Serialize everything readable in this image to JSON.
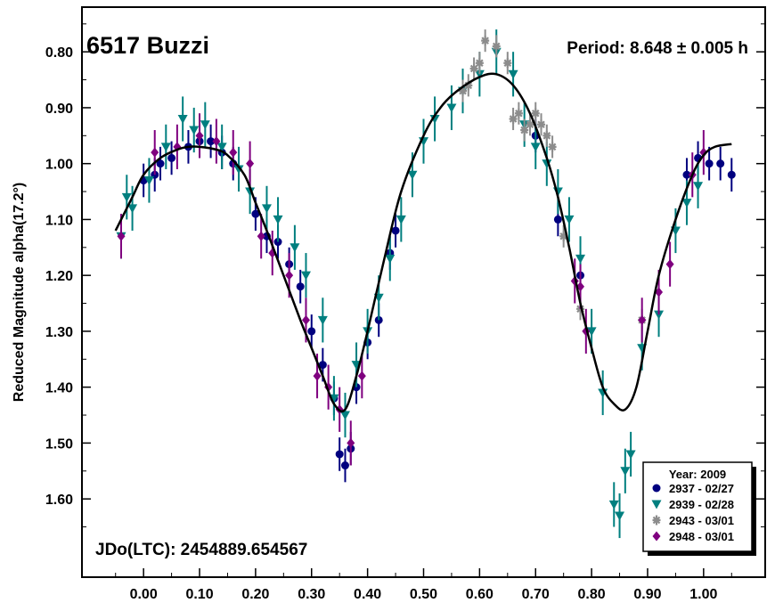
{
  "chart_data": {
    "type": "scatter",
    "title": "6517 Buzzi",
    "period_text": "Period: 8.648 ± 0.005 h",
    "jd_text": "JDo(LTC): 2454889.654567",
    "ylabel": "Reduced Magnitude alpha(17.2°)",
    "xlabel": "",
    "xlim": [
      -0.11,
      1.11
    ],
    "ylim": [
      1.74,
      0.72
    ],
    "y_inverted": true,
    "x_ticks": [
      "0.00",
      "0.10",
      "0.20",
      "0.30",
      "0.40",
      "0.50",
      "0.60",
      "0.70",
      "0.80",
      "0.90",
      "1.00"
    ],
    "y_ticks": [
      "0.80",
      "0.90",
      "1.00",
      "1.10",
      "1.20",
      "1.30",
      "1.40",
      "1.50",
      "1.60"
    ],
    "legend": {
      "title": "Year: 2009",
      "position": "bottom-right",
      "entries": [
        {
          "label": "2937 - 02/27",
          "color": "#00007f",
          "marker": "circle"
        },
        {
          "label": "2939 - 02/28",
          "color": "#007f7f",
          "marker": "triangle-down"
        },
        {
          "label": "2943 - 03/01",
          "color": "#8c8c8c",
          "marker": "asterisk"
        },
        {
          "label": "2948 - 03/01",
          "color": "#7f007f",
          "marker": "diamond"
        }
      ]
    },
    "fit_curve": {
      "color": "#000000",
      "x": [
        -0.05,
        -0.02,
        0.0,
        0.03,
        0.06,
        0.08,
        0.1,
        0.13,
        0.15,
        0.18,
        0.2,
        0.22,
        0.25,
        0.28,
        0.3,
        0.32,
        0.34,
        0.36,
        0.38,
        0.4,
        0.43,
        0.46,
        0.5,
        0.53,
        0.56,
        0.6,
        0.63,
        0.66,
        0.69,
        0.72,
        0.74,
        0.76,
        0.78,
        0.8,
        0.82,
        0.84,
        0.86,
        0.88,
        0.9,
        0.92,
        0.95,
        0.98,
        1.0,
        1.02,
        1.05
      ],
      "y": [
        1.12,
        1.06,
        1.02,
        0.99,
        0.975,
        0.97,
        0.97,
        0.975,
        0.985,
        1.02,
        1.07,
        1.12,
        1.2,
        1.28,
        1.33,
        1.38,
        1.43,
        1.44,
        1.38,
        1.3,
        1.17,
        1.05,
        0.95,
        0.9,
        0.87,
        0.845,
        0.84,
        0.86,
        0.91,
        0.99,
        1.06,
        1.15,
        1.25,
        1.33,
        1.4,
        1.43,
        1.44,
        1.4,
        1.3,
        1.2,
        1.1,
        1.02,
        0.985,
        0.97,
        0.965
      ]
    },
    "series": [
      {
        "name": "2937 - 02/27",
        "color": "#00007f",
        "marker": "circle",
        "x": [
          0.0,
          0.02,
          0.03,
          0.05,
          0.08,
          0.1,
          0.12,
          0.14,
          0.16,
          0.2,
          0.22,
          0.24,
          0.26,
          0.28,
          0.3,
          0.32,
          0.34,
          0.35,
          0.36,
          0.37,
          0.38,
          0.4,
          0.42,
          0.44,
          0.45,
          0.7,
          0.74,
          0.78,
          0.97,
          0.99,
          1.01,
          1.03,
          1.05
        ],
        "y": [
          1.03,
          1.02,
          1.0,
          0.99,
          0.97,
          0.96,
          0.96,
          0.98,
          1.0,
          1.09,
          1.13,
          1.14,
          1.18,
          1.22,
          1.3,
          1.36,
          1.42,
          1.52,
          1.54,
          1.51,
          1.4,
          1.32,
          1.28,
          1.16,
          1.12,
          0.95,
          1.1,
          1.2,
          1.02,
          0.99,
          1.0,
          1.0,
          1.02
        ],
        "err": [
          0.03,
          0.03,
          0.03,
          0.03,
          0.03,
          0.03,
          0.03,
          0.03,
          0.03,
          0.03,
          0.03,
          0.03,
          0.03,
          0.03,
          0.03,
          0.03,
          0.03,
          0.03,
          0.03,
          0.03,
          0.03,
          0.03,
          0.03,
          0.03,
          0.03,
          0.03,
          0.03,
          0.03,
          0.03,
          0.03,
          0.03,
          0.03,
          0.03
        ]
      },
      {
        "name": "2939 - 02/28",
        "color": "#007f7f",
        "marker": "triangle-down",
        "x": [
          -0.04,
          -0.03,
          -0.02,
          0.01,
          0.04,
          0.07,
          0.09,
          0.11,
          0.14,
          0.17,
          0.19,
          0.22,
          0.24,
          0.27,
          0.29,
          0.32,
          0.34,
          0.36,
          0.38,
          0.4,
          0.42,
          0.44,
          0.46,
          0.48,
          0.5,
          0.52,
          0.55,
          0.57,
          0.6,
          0.63,
          0.66,
          0.68,
          0.7,
          0.72,
          0.74,
          0.76,
          0.78,
          0.8,
          0.82,
          0.84,
          0.85,
          0.86,
          0.87,
          0.89,
          0.92,
          0.95,
          0.97,
          0.99
        ],
        "y": [
          1.13,
          1.06,
          1.08,
          1.03,
          0.97,
          0.92,
          0.94,
          0.93,
          0.97,
          1.01,
          1.05,
          1.08,
          1.1,
          1.15,
          1.2,
          1.28,
          1.42,
          1.45,
          1.36,
          1.3,
          1.24,
          1.17,
          1.1,
          1.02,
          0.96,
          0.92,
          0.9,
          0.87,
          0.84,
          0.8,
          0.84,
          0.93,
          0.97,
          1.0,
          1.05,
          1.1,
          1.17,
          1.3,
          1.41,
          1.61,
          1.63,
          1.55,
          1.52,
          1.33,
          1.27,
          1.12,
          1.07,
          1.04
        ],
        "err": [
          0.04,
          0.04,
          0.04,
          0.04,
          0.04,
          0.04,
          0.04,
          0.04,
          0.04,
          0.04,
          0.04,
          0.04,
          0.04,
          0.04,
          0.04,
          0.04,
          0.04,
          0.04,
          0.04,
          0.04,
          0.04,
          0.04,
          0.04,
          0.04,
          0.04,
          0.04,
          0.04,
          0.04,
          0.04,
          0.04,
          0.04,
          0.04,
          0.04,
          0.04,
          0.04,
          0.04,
          0.04,
          0.04,
          0.04,
          0.04,
          0.04,
          0.04,
          0.04,
          0.04,
          0.04,
          0.04,
          0.04,
          0.04
        ]
      },
      {
        "name": "2943 - 03/01",
        "color": "#8c8c8c",
        "marker": "asterisk",
        "x": [
          0.57,
          0.58,
          0.59,
          0.6,
          0.61,
          0.63,
          0.65,
          0.66,
          0.67,
          0.68,
          0.69,
          0.7,
          0.71,
          0.72,
          0.73,
          0.75,
          0.78,
          0.89
        ],
        "y": [
          0.87,
          0.86,
          0.83,
          0.82,
          0.78,
          0.79,
          0.82,
          0.92,
          0.91,
          0.94,
          0.93,
          0.91,
          0.93,
          0.95,
          0.97,
          1.13,
          1.26,
          1.28
        ],
        "err": [
          0.02,
          0.02,
          0.02,
          0.02,
          0.02,
          0.02,
          0.02,
          0.02,
          0.02,
          0.02,
          0.02,
          0.02,
          0.02,
          0.02,
          0.02,
          0.02,
          0.02,
          0.02
        ]
      },
      {
        "name": "2948 - 03/01",
        "color": "#7f007f",
        "marker": "diamond",
        "x": [
          -0.04,
          0.02,
          0.06,
          0.1,
          0.13,
          0.16,
          0.19,
          0.21,
          0.23,
          0.26,
          0.29,
          0.31,
          0.33,
          0.35,
          0.37,
          0.39,
          0.77,
          0.78,
          0.79,
          0.89,
          0.92,
          0.94,
          0.98,
          1.0
        ],
        "y": [
          1.13,
          0.98,
          0.97,
          0.95,
          0.96,
          0.98,
          1.0,
          1.13,
          1.16,
          1.2,
          1.28,
          1.38,
          1.4,
          1.44,
          1.5,
          1.38,
          1.21,
          1.22,
          1.3,
          1.28,
          1.23,
          1.18,
          1.02,
          0.98
        ],
        "err": [
          0.04,
          0.04,
          0.04,
          0.04,
          0.04,
          0.04,
          0.04,
          0.04,
          0.04,
          0.04,
          0.04,
          0.04,
          0.04,
          0.04,
          0.04,
          0.04,
          0.04,
          0.04,
          0.04,
          0.04,
          0.04,
          0.04,
          0.04,
          0.04
        ]
      }
    ]
  }
}
